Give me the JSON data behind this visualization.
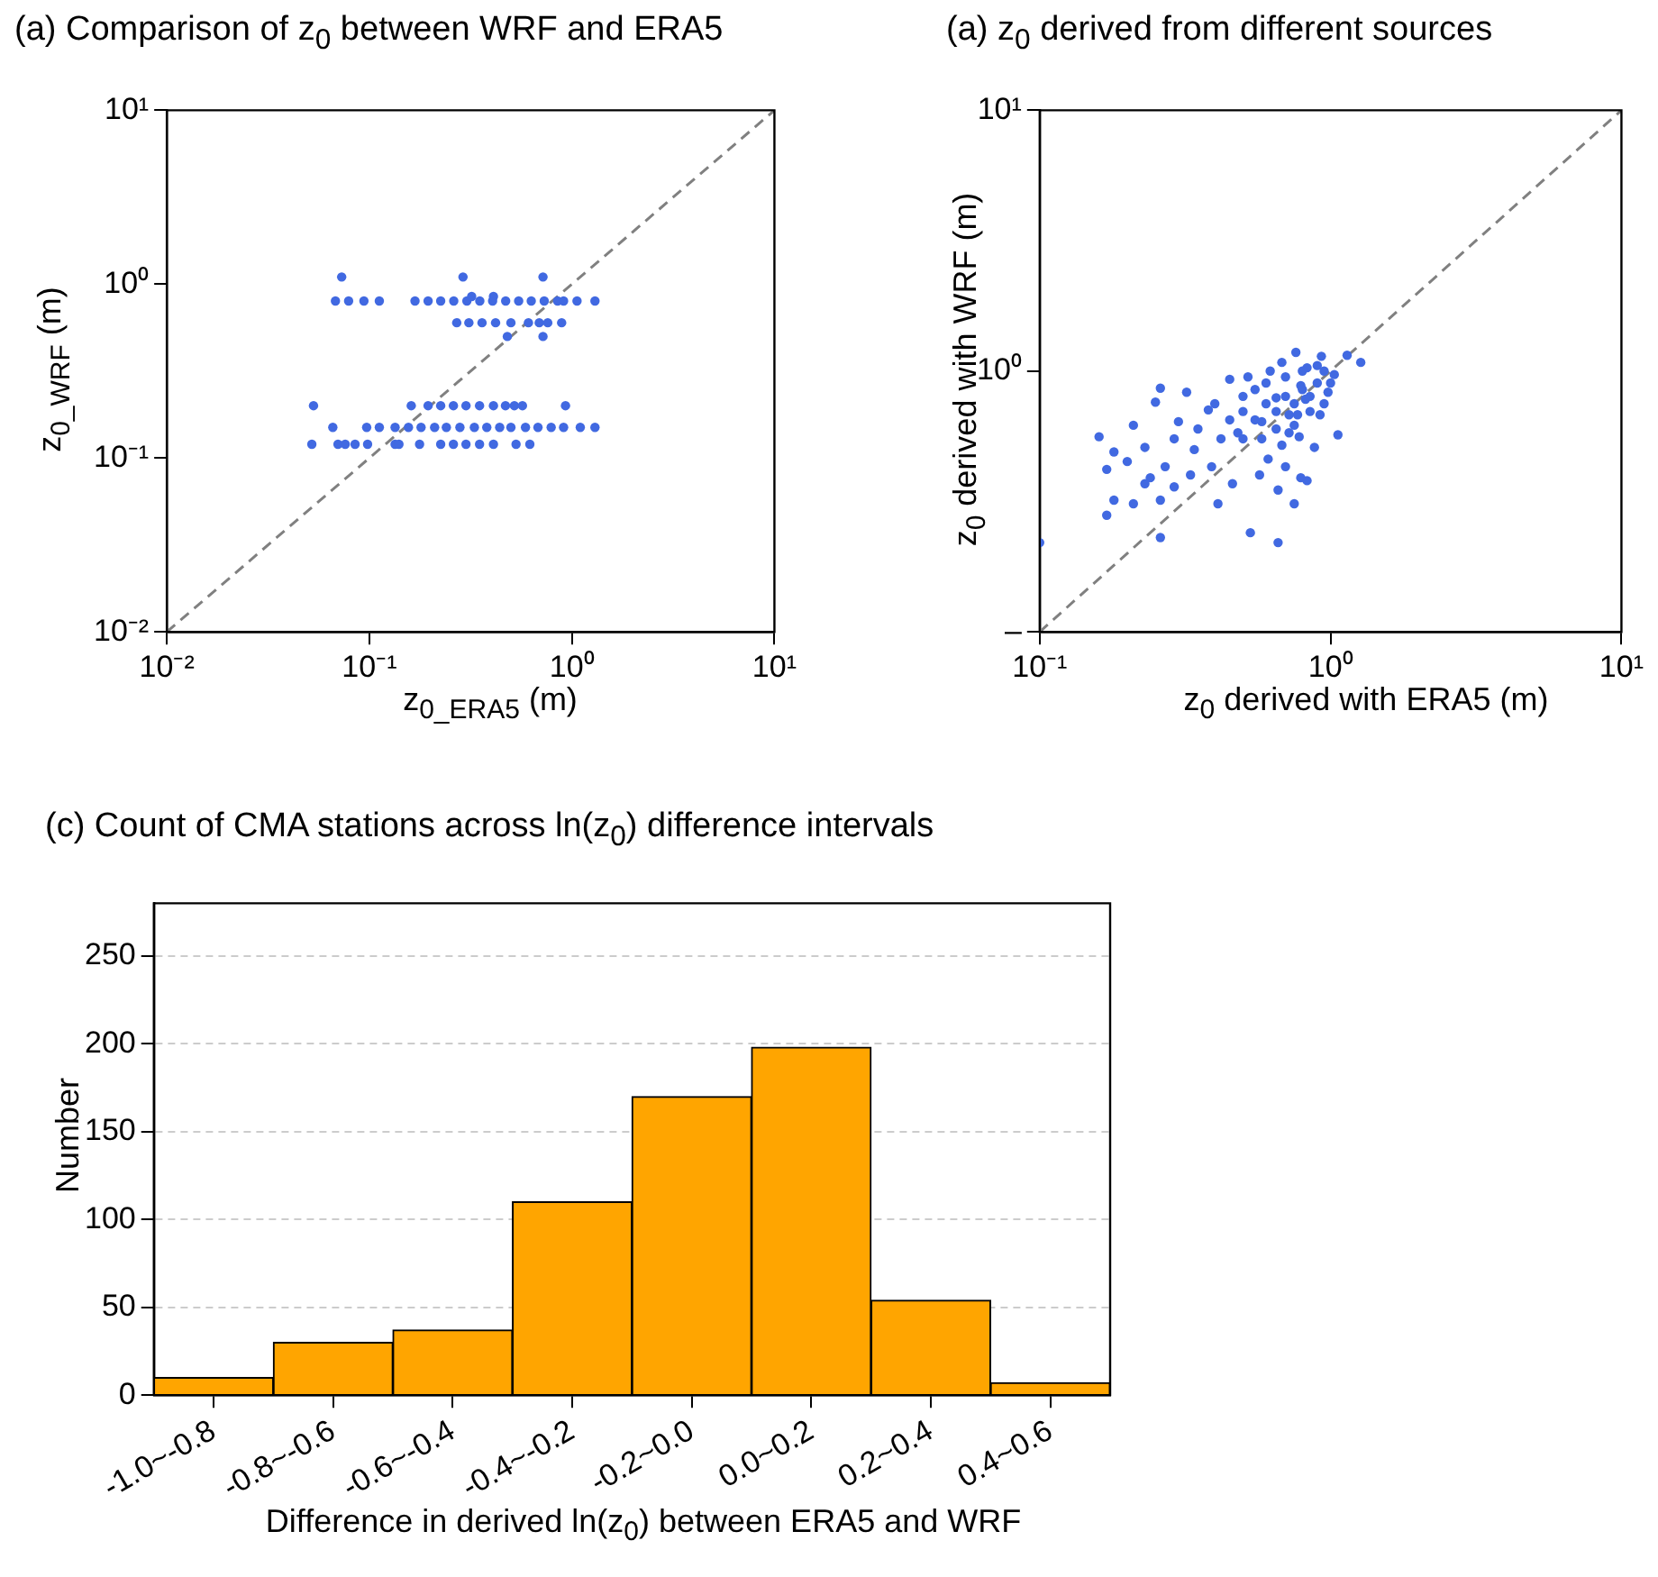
{
  "chart_data": [
    {
      "type": "scatter",
      "title": "(a) Comparison of z$_{0}$ between WRF and ERA5",
      "xlabel": "z$_{0_ERA5}$ (m)",
      "ylabel": "z$_{0_WRF}$ (m)",
      "log": "xy",
      "grid": false,
      "xlim": [
        0.01,
        10
      ],
      "ylim": [
        0.01,
        10
      ],
      "xticks": [
        {
          "value": 0.01,
          "label": "10⁻²"
        },
        {
          "value": 0.1,
          "label": "10⁻¹"
        },
        {
          "value": 1,
          "label": "10⁰"
        },
        {
          "value": 10,
          "label": "10¹"
        }
      ],
      "yticks": [
        {
          "value": 0.01,
          "label": "10⁻²"
        },
        {
          "value": 0.1,
          "label": "10⁻¹"
        },
        {
          "value": 1,
          "label": "10⁰"
        },
        {
          "value": 10,
          "label": "10¹"
        }
      ],
      "series": [
        {
          "type": "scatter",
          "marker": "circle",
          "color": "#4169e1",
          "x": [
            0.073,
            0.29,
            0.72,
            0.068,
            0.079,
            0.094,
            0.112,
            0.168,
            0.195,
            0.225,
            0.261,
            0.303,
            0.351,
            0.406,
            0.471,
            0.546,
            0.63,
            0.73,
            0.85,
            0.91,
            1.06,
            1.3,
            0.32,
            0.41,
            0.27,
            0.31,
            0.36,
            0.42,
            0.5,
            0.61,
            0.69,
            0.76,
            0.89,
            0.48,
            0.72,
            0.053,
            0.161,
            0.195,
            0.225,
            0.26,
            0.3,
            0.35,
            0.41,
            0.47,
            0.52,
            0.57,
            0.93,
            0.066,
            0.097,
            0.112,
            0.134,
            0.156,
            0.18,
            0.21,
            0.24,
            0.28,
            0.33,
            0.38,
            0.44,
            0.5,
            0.59,
            0.68,
            0.79,
            0.91,
            1.1,
            1.3,
            0.052,
            0.07,
            0.076,
            0.085,
            0.098,
            0.134,
            0.14,
            0.177,
            0.225,
            0.26,
            0.3,
            0.35,
            0.41,
            0.53,
            0.62
          ],
          "values": [
            1.1,
            1.1,
            1.1,
            0.8,
            0.8,
            0.8,
            0.8,
            0.8,
            0.8,
            0.8,
            0.8,
            0.8,
            0.8,
            0.8,
            0.8,
            0.8,
            0.8,
            0.8,
            0.8,
            0.8,
            0.8,
            0.8,
            0.85,
            0.85,
            0.6,
            0.6,
            0.6,
            0.6,
            0.6,
            0.6,
            0.6,
            0.6,
            0.6,
            0.5,
            0.5,
            0.2,
            0.2,
            0.2,
            0.2,
            0.2,
            0.2,
            0.2,
            0.2,
            0.2,
            0.2,
            0.2,
            0.2,
            0.15,
            0.15,
            0.15,
            0.15,
            0.15,
            0.15,
            0.15,
            0.15,
            0.15,
            0.15,
            0.15,
            0.15,
            0.15,
            0.15,
            0.15,
            0.15,
            0.15,
            0.15,
            0.15,
            0.12,
            0.12,
            0.12,
            0.12,
            0.12,
            0.12,
            0.12,
            0.12,
            0.12,
            0.12,
            0.12,
            0.12,
            0.12,
            0.12,
            0.12
          ]
        },
        {
          "type": "line",
          "color": "#808080",
          "line_style": "dashed",
          "x": [
            0.01,
            10
          ],
          "values": [
            0.01,
            10
          ]
        }
      ]
    },
    {
      "type": "scatter",
      "title": "(a) z$_{0}$ derived from different sources",
      "xlabel": "z$_{0}$ derived with ERA5 (m)",
      "ylabel": "z$_{0}$ derived with WRF (m)",
      "log": "xy",
      "grid": false,
      "xlim": [
        0.1,
        10
      ],
      "ylim": [
        0.1,
        10
      ],
      "xticks": [
        {
          "value": 0.1,
          "label": "10⁻¹"
        },
        {
          "value": 1,
          "label": "10⁰"
        },
        {
          "value": 10,
          "label": "10¹"
        }
      ],
      "yticks": [
        {
          "value": 0.1,
          "label": "–"
        },
        {
          "value": 1,
          "label": "10⁰"
        },
        {
          "value": 10,
          "label": "10¹"
        }
      ],
      "series": [
        {
          "type": "scatter",
          "marker": "circle",
          "color": "#4169e1",
          "x": [
            0.1,
            0.16,
            0.17,
            0.17,
            0.18,
            0.18,
            0.2,
            0.21,
            0.21,
            0.23,
            0.23,
            0.24,
            0.25,
            0.26,
            0.26,
            0.26,
            0.27,
            0.29,
            0.29,
            0.3,
            0.32,
            0.33,
            0.34,
            0.38,
            0.39,
            0.41,
            0.45,
            0.46,
            0.5,
            0.52,
            0.53,
            0.57,
            0.58,
            0.61,
            0.65,
            0.66,
            0.66,
            0.68,
            0.7,
            0.72,
            0.75,
            0.76,
            0.77,
            0.79,
            0.83,
            0.79,
            0.83,
            0.88,
            0.93,
            0.98,
            1.03,
            1.06,
            1.14,
            1.27,
            0.5,
            0.55,
            0.6,
            0.65,
            0.7,
            0.75,
            0.8,
            0.85,
            0.9,
            0.95,
            0.6,
            0.7,
            0.8,
            0.9,
            0.55,
            0.65,
            0.75,
            0.85,
            0.95,
            1.0,
            0.45,
            0.5,
            0.62,
            0.72,
            0.82,
            0.92,
            0.4,
            0.35,
            0.42,
            0.48,
            0.58,
            0.68,
            0.78
          ],
          "values": [
            0.22,
            0.56,
            0.42,
            0.28,
            0.49,
            0.32,
            0.45,
            0.62,
            0.31,
            0.51,
            0.37,
            0.39,
            0.76,
            0.86,
            0.32,
            0.23,
            0.43,
            0.36,
            0.55,
            0.64,
            0.83,
            0.4,
            0.5,
            0.71,
            0.43,
            0.31,
            0.93,
            0.37,
            0.55,
            0.95,
            0.24,
            0.4,
            0.64,
            0.46,
            0.79,
            0.35,
            0.22,
            1.08,
            0.43,
            0.58,
            0.31,
            1.18,
            0.68,
            0.39,
            0.38,
            0.88,
            1.03,
            0.51,
            1.14,
            0.83,
            0.97,
            0.57,
            1.15,
            1.08,
            0.7,
            0.65,
            0.75,
            0.7,
            0.8,
            0.75,
            0.85,
            0.8,
            0.9,
            1.0,
            0.9,
            0.95,
            1.0,
            1.05,
            0.85,
            0.6,
            0.62,
            0.7,
            0.75,
            0.9,
            0.65,
            0.8,
            1.0,
            0.68,
            0.78,
            0.68,
            0.75,
            0.6,
            0.55,
            0.58,
            0.55,
            0.52,
            0.56
          ]
        },
        {
          "type": "line",
          "color": "#808080",
          "line_style": "dashed",
          "x": [
            0.1,
            10
          ],
          "values": [
            0.1,
            10
          ]
        }
      ]
    },
    {
      "type": "bar",
      "title": "(c) Count of CMA stations across ln(z$_{0}$) difference intervals",
      "xlabel": "Difference in derived ln(z$_{0}$) between ERA5 and WRF",
      "ylabel": "Number",
      "grid": "y",
      "color": "#ffa500",
      "categories": [
        "-1.0~-0.8",
        "-0.8~-0.6",
        "-0.6~-0.4",
        "-0.4~-0.2",
        "-0.2~0.0",
        "0.0~0.2",
        "0.2~0.4",
        "0.4~0.6"
      ],
      "values": [
        10,
        30,
        37,
        110,
        170,
        198,
        54,
        7
      ],
      "ylim": [
        0,
        280
      ],
      "yticks": [
        0,
        50,
        100,
        150,
        200,
        250
      ]
    }
  ]
}
